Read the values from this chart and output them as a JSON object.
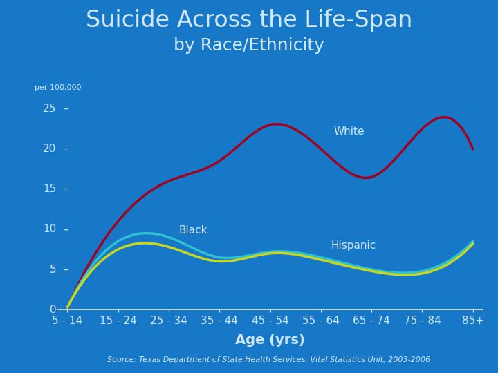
{
  "title": "Suicide Across the Life-Span",
  "subtitle": "by Race/Ethnicity",
  "xlabel": "Age (yrs)",
  "ylabel": "per 100,000",
  "background_color": "#1878c8",
  "plot_bg_color": "#1878c8",
  "text_color": "#d0e8f8",
  "axis_color": "#d0e8f8",
  "source_text": "Source: Texas Department of State Health Services, Vital Statistics Unit, 2003-2006",
  "age_labels": [
    "5 - 14",
    "15 - 24",
    "25 - 34",
    "35 - 44",
    "45 - 54",
    "55 - 64",
    "65 - 74",
    "75 - 84",
    "85+"
  ],
  "white_data": [
    0.3,
    11.0,
    16.0,
    18.5,
    23.0,
    20.0,
    16.5,
    22.5,
    20.0
  ],
  "black_data": [
    0.3,
    8.5,
    9.0,
    6.5,
    7.2,
    6.5,
    5.0,
    4.8,
    8.5
  ],
  "hispanic_data": [
    0.3,
    7.5,
    7.8,
    6.0,
    7.0,
    6.2,
    4.8,
    4.5,
    8.2
  ],
  "white_color": "#a00020",
  "black_color": "#30c0d0",
  "hispanic_color": "#c8d820",
  "white_label": "White",
  "black_label": "Black",
  "hispanic_label": "Hispanic",
  "ylim": [
    0,
    26
  ],
  "yticks": [
    0,
    5,
    10,
    15,
    20,
    25
  ],
  "title_fontsize": 24,
  "subtitle_fontsize": 18,
  "tick_fontsize": 11,
  "annot_fontsize": 11,
  "source_fontsize": 8,
  "line_width": 2.5
}
